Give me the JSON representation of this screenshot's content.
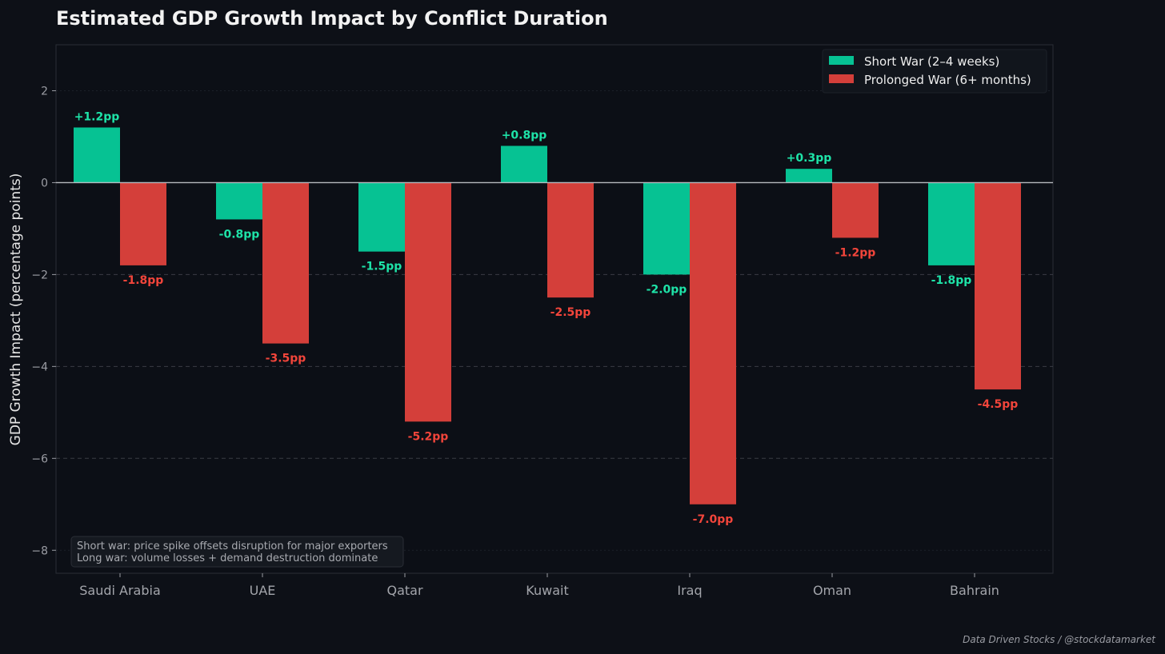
{
  "chart_data": {
    "type": "bar",
    "title": "Estimated GDP Growth Impact by Conflict Duration",
    "xlabel": "",
    "ylabel": "GDP Growth Impact (percentage points)",
    "ylim": [
      -8.5,
      3
    ],
    "yticks": [
      2,
      0,
      -2,
      -4,
      -6,
      -8
    ],
    "ytick_labels": [
      "2",
      "0",
      "−2",
      "−4",
      "−6",
      "−8"
    ],
    "categories": [
      "Saudi Arabia",
      "UAE",
      "Qatar",
      "Kuwait",
      "Iraq",
      "Oman",
      "Bahrain"
    ],
    "series": [
      {
        "name": "Short War (2–4 weeks)",
        "color": "#06c293",
        "label_color": "#1ee3a8",
        "values": [
          1.2,
          -0.8,
          -1.5,
          0.8,
          -2.0,
          0.3,
          -1.8
        ],
        "labels": [
          "+1.2pp",
          "-0.8pp",
          "-1.5pp",
          "+0.8pp",
          "-2.0pp",
          "+0.3pp",
          "-1.8pp"
        ]
      },
      {
        "name": "Prolonged War (6+ months)",
        "color": "#d43f3a",
        "label_color": "#f2453b",
        "values": [
          -1.8,
          -3.5,
          -5.2,
          -2.5,
          -7.0,
          -1.2,
          -4.5
        ],
        "labels": [
          "-1.8pp",
          "-3.5pp",
          "-5.2pp",
          "-2.5pp",
          "-7.0pp",
          "-1.2pp",
          "-4.5pp"
        ]
      }
    ],
    "grid": true,
    "legend_position": "top-right",
    "annotation": [
      "Short war: price spike offsets disruption for major exporters",
      "Long war: volume losses + demand destruction dominate"
    ]
  },
  "credit": "Data Driven Stocks / @stockdatamarket"
}
